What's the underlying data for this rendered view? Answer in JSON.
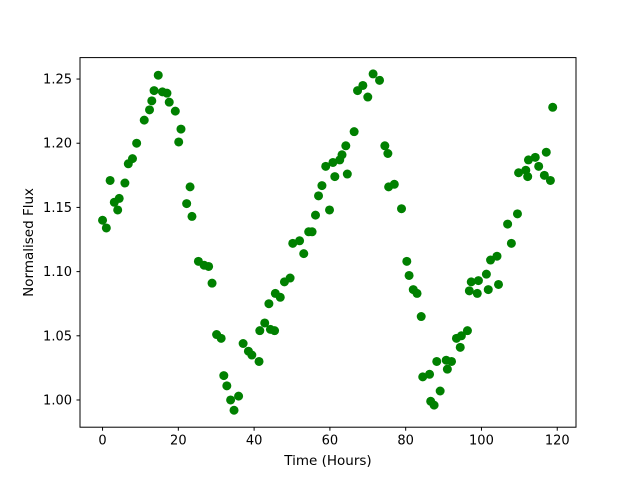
{
  "figure": {
    "background": "#ffffff"
  },
  "chart_data": {
    "type": "scatter",
    "title": "",
    "xlabel": "Time (Hours)",
    "ylabel": "Normalised Flux",
    "marker": "circle",
    "marker_color": "#008000",
    "marker_radius_px": 4.5,
    "grid": false,
    "legend": null,
    "xlim": [
      -5.95,
      124.95
    ],
    "ylim": [
      0.9788,
      1.2667
    ],
    "xticks": [
      0,
      20,
      40,
      60,
      80,
      100,
      120
    ],
    "xtick_labels": [
      "0",
      "20",
      "40",
      "60",
      "80",
      "100",
      "120"
    ],
    "yticks": [
      1.0,
      1.05,
      1.1,
      1.15,
      1.2,
      1.25
    ],
    "ytick_labels": [
      "1.00",
      "1.05",
      "1.10",
      "1.15",
      "1.20",
      "1.25"
    ],
    "points": [
      [
        0.0,
        1.14
      ],
      [
        1.0,
        1.134
      ],
      [
        2.0,
        1.171
      ],
      [
        3.1,
        1.154
      ],
      [
        4.0,
        1.148
      ],
      [
        4.4,
        1.157
      ],
      [
        5.9,
        1.169
      ],
      [
        6.8,
        1.184
      ],
      [
        7.9,
        1.188
      ],
      [
        9.0,
        1.2
      ],
      [
        11.0,
        1.218
      ],
      [
        12.4,
        1.226
      ],
      [
        13.0,
        1.233
      ],
      [
        13.6,
        1.241
      ],
      [
        14.7,
        1.253
      ],
      [
        15.8,
        1.24
      ],
      [
        17.0,
        1.239
      ],
      [
        17.6,
        1.232
      ],
      [
        19.2,
        1.225
      ],
      [
        20.1,
        1.201
      ],
      [
        20.7,
        1.211
      ],
      [
        22.2,
        1.153
      ],
      [
        23.1,
        1.166
      ],
      [
        23.6,
        1.143
      ],
      [
        25.3,
        1.108
      ],
      [
        26.8,
        1.105
      ],
      [
        28.0,
        1.104
      ],
      [
        28.9,
        1.091
      ],
      [
        30.1,
        1.051
      ],
      [
        31.3,
        1.048
      ],
      [
        32.0,
        1.019
      ],
      [
        32.8,
        1.011
      ],
      [
        33.8,
        1.0
      ],
      [
        34.7,
        0.992
      ],
      [
        35.9,
        1.003
      ],
      [
        37.1,
        1.044
      ],
      [
        38.5,
        1.038
      ],
      [
        39.4,
        1.035
      ],
      [
        41.3,
        1.03
      ],
      [
        41.5,
        1.054
      ],
      [
        42.8,
        1.06
      ],
      [
        43.9,
        1.075
      ],
      [
        44.3,
        1.055
      ],
      [
        45.4,
        1.054
      ],
      [
        45.6,
        1.083
      ],
      [
        46.9,
        1.08
      ],
      [
        48.0,
        1.092
      ],
      [
        49.5,
        1.095
      ],
      [
        50.2,
        1.122
      ],
      [
        52.0,
        1.124
      ],
      [
        53.1,
        1.114
      ],
      [
        54.4,
        1.131
      ],
      [
        55.3,
        1.131
      ],
      [
        56.2,
        1.144
      ],
      [
        57.0,
        1.159
      ],
      [
        57.9,
        1.167
      ],
      [
        58.9,
        1.182
      ],
      [
        59.9,
        1.148
      ],
      [
        60.8,
        1.185
      ],
      [
        61.3,
        1.174
      ],
      [
        62.6,
        1.187
      ],
      [
        63.2,
        1.191
      ],
      [
        64.2,
        1.198
      ],
      [
        64.6,
        1.176
      ],
      [
        66.4,
        1.209
      ],
      [
        67.3,
        1.241
      ],
      [
        68.7,
        1.245
      ],
      [
        70.0,
        1.236
      ],
      [
        71.4,
        1.254
      ],
      [
        73.1,
        1.249
      ],
      [
        74.5,
        1.198
      ],
      [
        75.3,
        1.192
      ],
      [
        75.5,
        1.166
      ],
      [
        77.0,
        1.168
      ],
      [
        78.9,
        1.149
      ],
      [
        80.3,
        1.108
      ],
      [
        80.9,
        1.097
      ],
      [
        82.0,
        1.086
      ],
      [
        83.0,
        1.083
      ],
      [
        84.1,
        1.065
      ],
      [
        84.5,
        1.018
      ],
      [
        86.3,
        1.02
      ],
      [
        86.6,
        0.999
      ],
      [
        87.5,
        0.996
      ],
      [
        88.2,
        1.03
      ],
      [
        89.1,
        1.007
      ],
      [
        90.7,
        1.031
      ],
      [
        91.0,
        1.024
      ],
      [
        92.1,
        1.03
      ],
      [
        93.4,
        1.048
      ],
      [
        94.4,
        1.041
      ],
      [
        94.7,
        1.05
      ],
      [
        96.3,
        1.054
      ],
      [
        96.8,
        1.085
      ],
      [
        97.3,
        1.092
      ],
      [
        98.9,
        1.083
      ],
      [
        99.2,
        1.093
      ],
      [
        101.3,
        1.098
      ],
      [
        101.8,
        1.086
      ],
      [
        102.4,
        1.109
      ],
      [
        104.1,
        1.112
      ],
      [
        104.5,
        1.09
      ],
      [
        106.9,
        1.137
      ],
      [
        107.9,
        1.122
      ],
      [
        109.5,
        1.145
      ],
      [
        109.8,
        1.177
      ],
      [
        111.7,
        1.179
      ],
      [
        112.2,
        1.174
      ],
      [
        112.4,
        1.187
      ],
      [
        114.2,
        1.189
      ],
      [
        115.1,
        1.182
      ],
      [
        116.6,
        1.175
      ],
      [
        117.1,
        1.193
      ],
      [
        118.2,
        1.171
      ],
      [
        118.8,
        1.228
      ]
    ]
  }
}
